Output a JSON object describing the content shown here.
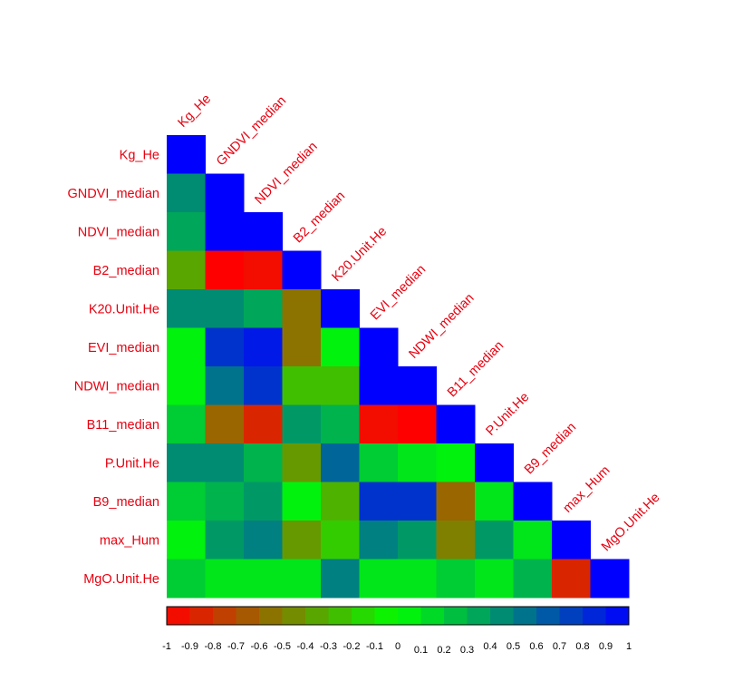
{
  "chart_data": {
    "type": "heatmap",
    "variables": [
      "Kg_He",
      "GNDVI_median",
      "NDVI_median",
      "B2_median",
      "K20.Unit.He",
      "EVI_median",
      "NDWI_median",
      "B11_median",
      "P.Unit.He",
      "B9_median",
      "max_Hum",
      "MgO.Unit.He"
    ],
    "matrix": [
      [
        1
      ],
      [
        0.45,
        1
      ],
      [
        0.35,
        1,
        1
      ],
      [
        -0.35,
        -1,
        -0.95,
        1
      ],
      [
        0.45,
        0.45,
        0.35,
        -0.55,
        1
      ],
      [
        0.05,
        0.8,
        0.9,
        -0.55,
        0.05,
        1
      ],
      [
        0.05,
        0.55,
        0.8,
        -0.25,
        -0.25,
        1,
        1
      ],
      [
        0.2,
        -0.6,
        -0.85,
        0.4,
        0.3,
        -0.95,
        -1,
        1
      ],
      [
        0.45,
        0.45,
        0.3,
        -0.4,
        0.6,
        0.2,
        0.1,
        0.05,
        1
      ],
      [
        0.2,
        0.3,
        0.4,
        0.05,
        -0.3,
        0.8,
        0.8,
        -0.6,
        0.1,
        1
      ],
      [
        0.05,
        0.4,
        0.5,
        -0.4,
        -0.2,
        0.5,
        0.4,
        -0.5,
        0.4,
        0.1,
        1
      ],
      [
        0.2,
        0.1,
        0.1,
        0.1,
        0.5,
        0.1,
        0.1,
        0.2,
        0.1,
        0.3,
        -0.85,
        1
      ]
    ],
    "colorbar": {
      "ticks": [
        "-1",
        "-0.9",
        "-0.8",
        "-0.7",
        "-0.6",
        "-0.5",
        "-0.4",
        "-0.3",
        "-0.2",
        "-0.1",
        "0",
        "0.1",
        "0.2",
        "0.3",
        "0.4",
        "0.5",
        "0.6",
        "0.7",
        "0.8",
        "0.9",
        "1"
      ],
      "range": [
        -1,
        1
      ]
    },
    "colors": {
      "negative": "#ff0000",
      "zero": "#00ff00",
      "positive": "#0000ff",
      "label": "#e8000f"
    }
  }
}
